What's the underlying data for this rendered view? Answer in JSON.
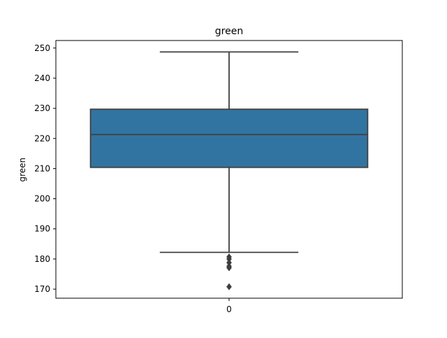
{
  "chart_data": {
    "type": "box",
    "title": "green",
    "xlabel": "",
    "ylabel": "green",
    "categories": [
      "0"
    ],
    "yticks": [
      "170",
      "180",
      "190",
      "200",
      "210",
      "220",
      "230",
      "240",
      "250"
    ],
    "ylim": [
      167.0,
      252.5
    ],
    "boxes": [
      {
        "category": "0",
        "whisker_low": 182.2,
        "q1": 210.4,
        "median": 221.3,
        "q3": 229.7,
        "whisker_high": 248.7,
        "outliers": [
          180.7,
          180.0,
          178.8,
          177.6,
          177.1,
          170.8
        ]
      }
    ],
    "box_color": "#3274a1",
    "line_color": "#3f3f3f",
    "grid": false
  }
}
